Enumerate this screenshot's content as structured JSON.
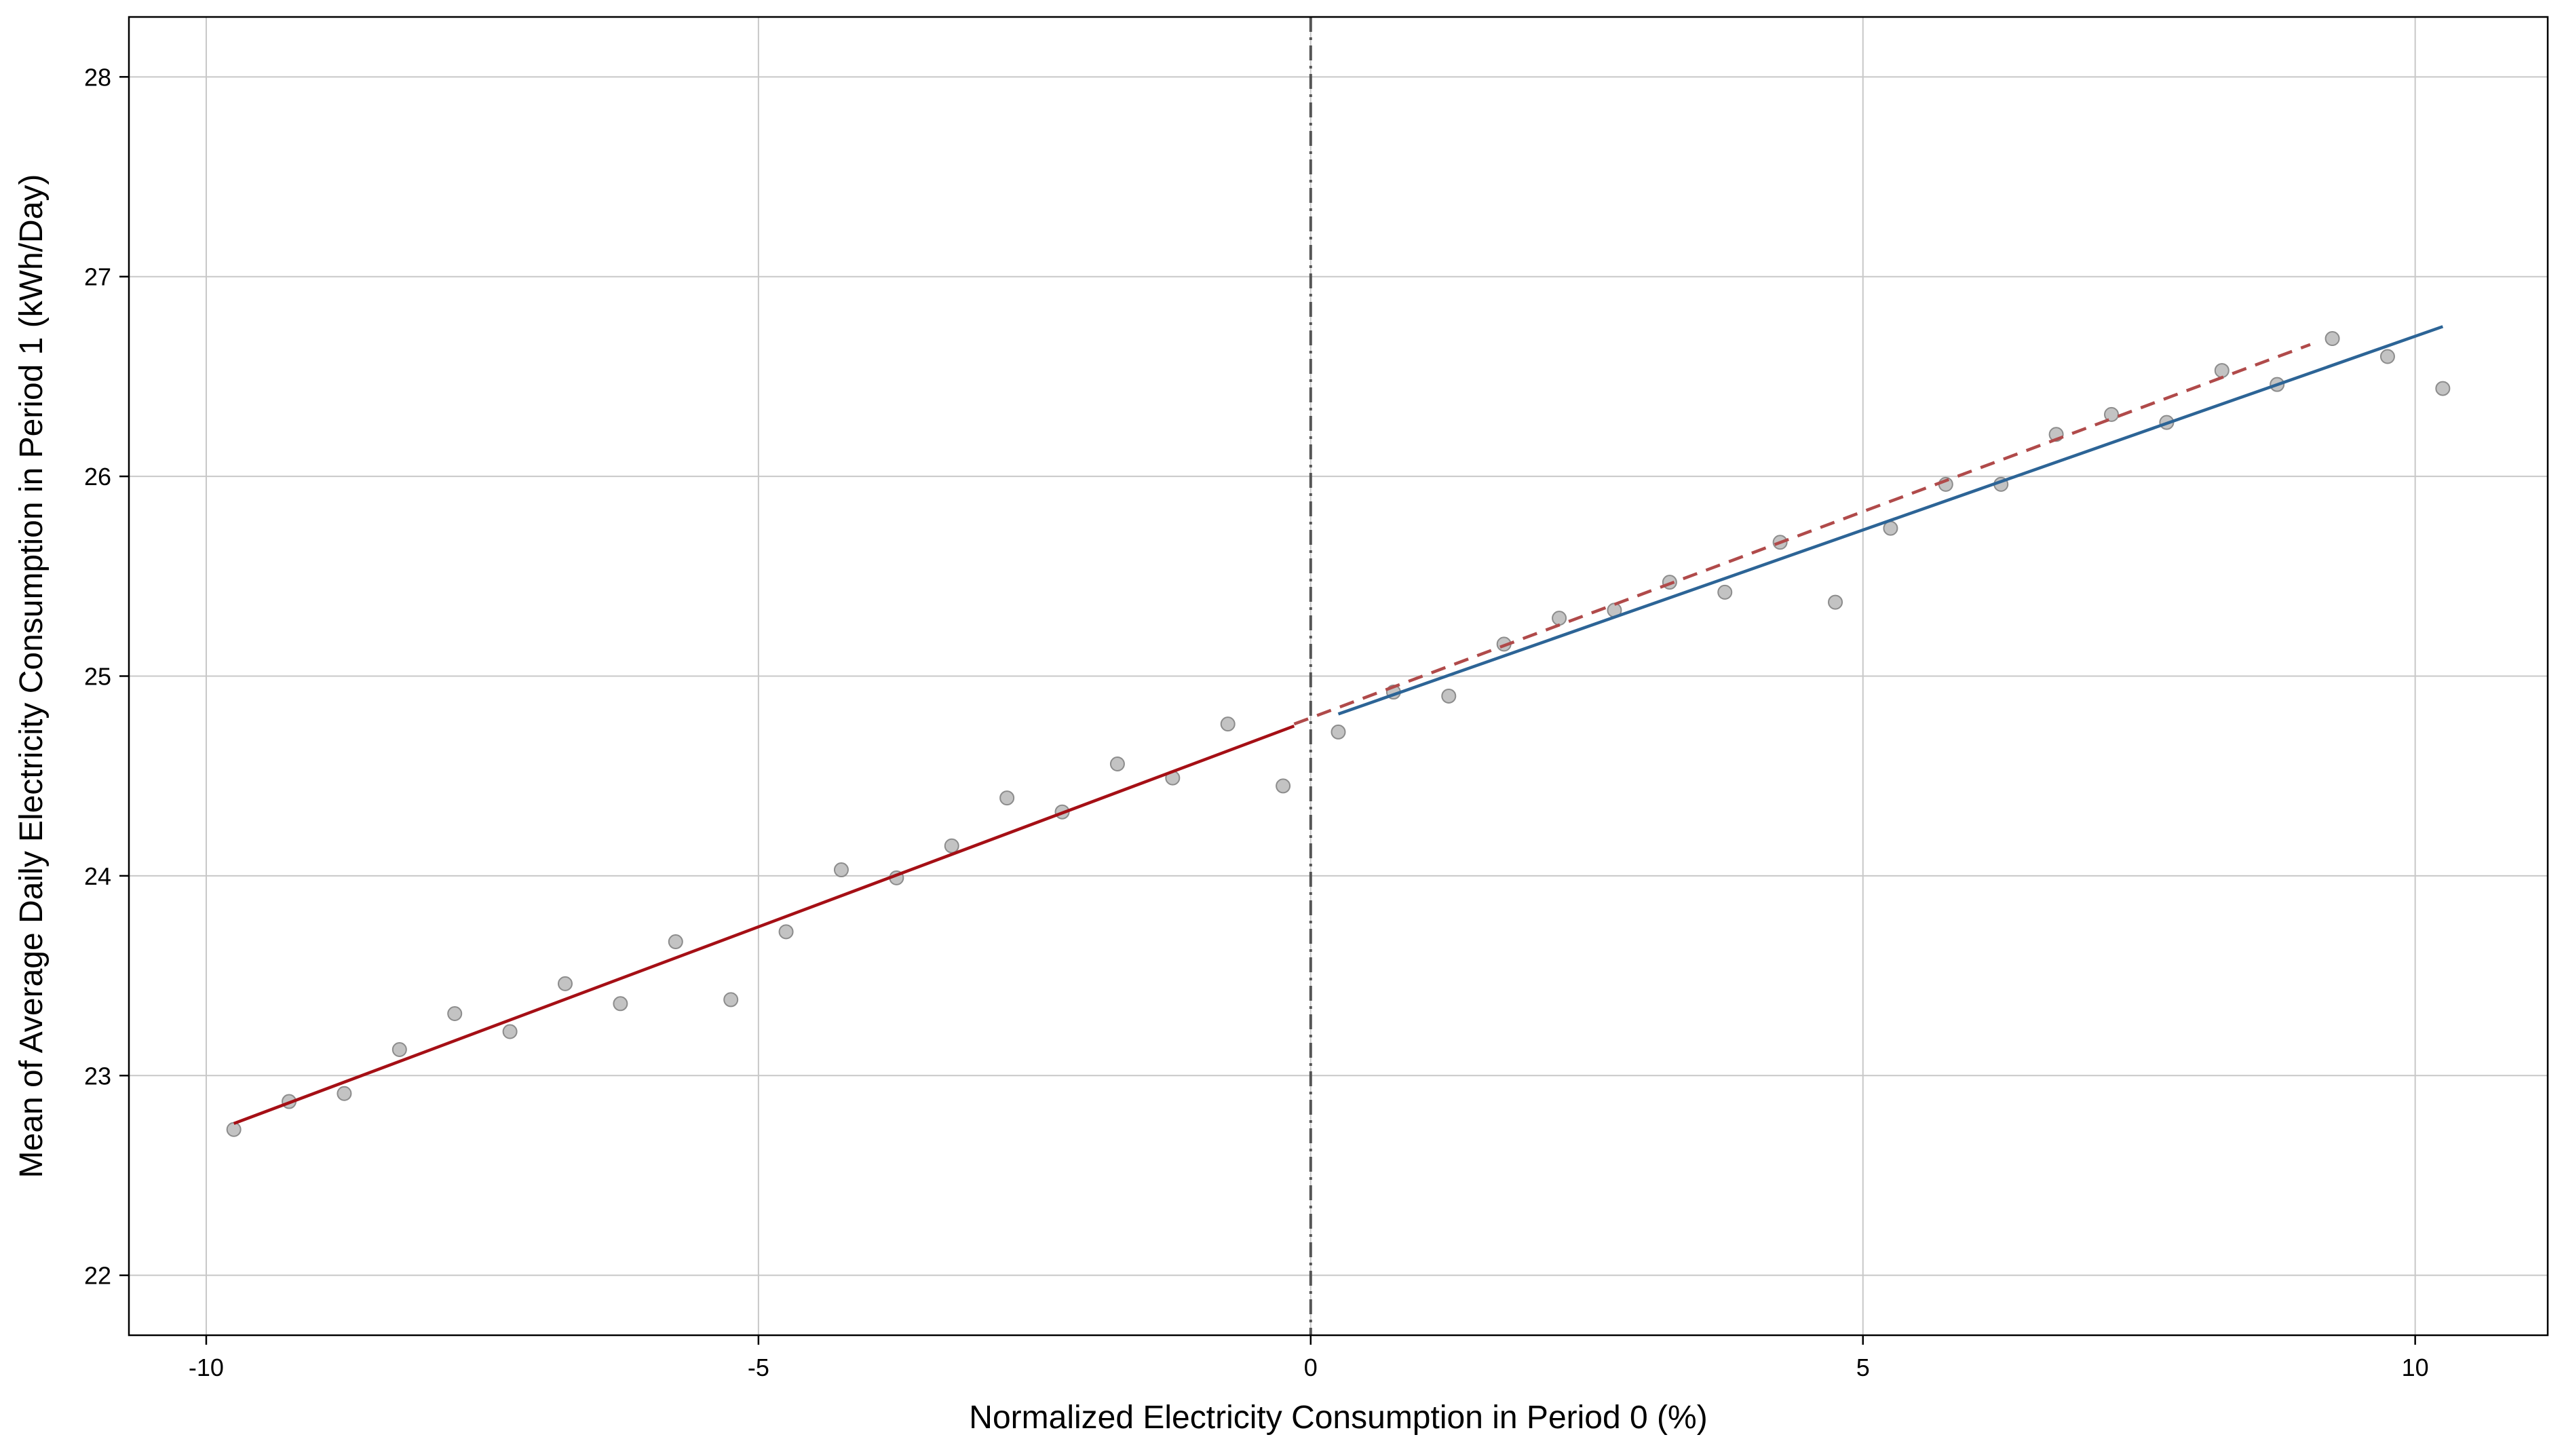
{
  "chart_data": {
    "type": "scatter",
    "title": "",
    "xlabel": "Normalized Electricity Consumption in Period 0  (%)",
    "ylabel": "Mean of Average Daily Electricity Consumption in Period 1  (kWh/Day)",
    "xlim": [
      -10.7,
      11.2
    ],
    "ylim": [
      21.7,
      28.3
    ],
    "x_ticks": [
      -10,
      -5,
      0,
      5,
      10
    ],
    "x_tick_labels": [
      "-10",
      "-5",
      "0",
      "5",
      "10"
    ],
    "y_ticks": [
      22,
      23,
      24,
      25,
      26,
      27,
      28
    ],
    "y_tick_labels": [
      "22",
      "23",
      "24",
      "25",
      "26",
      "27",
      "28"
    ],
    "grid": true,
    "legend": "none",
    "points": {
      "x": [
        -9.75,
        -9.25,
        -8.75,
        -8.25,
        -7.75,
        -7.25,
        -6.75,
        -6.25,
        -5.75,
        -5.25,
        -4.75,
        -4.25,
        -3.75,
        -3.25,
        -2.75,
        -2.25,
        -1.75,
        -1.25,
        -0.75,
        -0.25,
        0.25,
        0.75,
        1.25,
        1.75,
        2.25,
        2.75,
        3.25,
        3.75,
        4.25,
        4.75,
        5.25,
        5.75,
        6.25,
        6.75,
        7.25,
        7.75,
        8.25,
        8.75,
        9.25,
        9.75,
        10.25
      ],
      "y": [
        22.73,
        22.87,
        22.91,
        23.13,
        23.31,
        23.22,
        23.46,
        23.36,
        23.67,
        23.38,
        23.72,
        24.03,
        23.99,
        24.15,
        24.39,
        24.32,
        24.56,
        24.49,
        24.76,
        24.45,
        24.72,
        24.92,
        24.9,
        25.16,
        25.29,
        25.33,
        25.47,
        25.42,
        25.67,
        25.37,
        25.74,
        25.96,
        25.96,
        26.21,
        26.31,
        26.27,
        26.53,
        26.46,
        26.69,
        26.6,
        26.44
      ],
      "color": "#bdbdbd"
    },
    "fit_lines": [
      {
        "x": [
          -9.75,
          -0.15
        ],
        "y": [
          22.76,
          24.75
        ],
        "color": "#a50f15",
        "style": "solid"
      },
      {
        "x": [
          0.25,
          10.25
        ],
        "y": [
          24.81,
          26.75
        ],
        "color": "#2c6496",
        "style": "solid"
      },
      {
        "x": [
          -0.15,
          9.05
        ],
        "y": [
          24.76,
          26.66
        ],
        "color": "#b04a4a",
        "style": "dashed"
      }
    ],
    "cutoff": {
      "x": 0,
      "color": "#555555",
      "style": "dashdot"
    }
  }
}
